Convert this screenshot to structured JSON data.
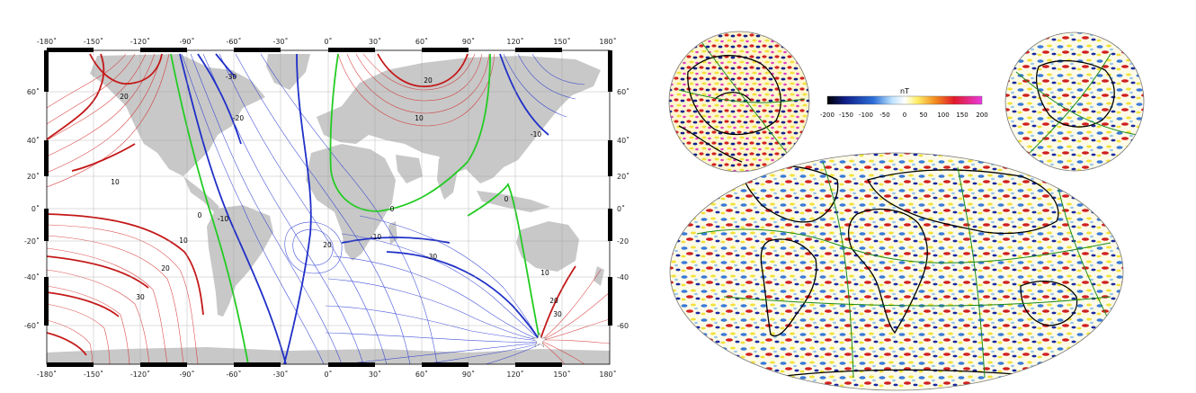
{
  "left_map": {
    "x_ticks": [
      "-180˚",
      "-150˚",
      "-120˚",
      "-90˚",
      "-60˚",
      "-30˚",
      "0˚",
      "30˚",
      "60˚",
      "90˚",
      "120˚",
      "150˚",
      "180˚"
    ],
    "y_ticks": [
      "60˚",
      "40˚",
      "20˚",
      "0˚",
      "-20˚",
      "-40˚",
      "-60˚"
    ],
    "contour_labels": {
      "l_m30_top": "-30",
      "l_20_a": "20",
      "l_m20": "-20",
      "l_20_b": "20",
      "l_10_a": "10",
      "l_m10_asia": "-10",
      "l_10_pac": "10",
      "l_0_atl": "0",
      "l_0_ind": "0",
      "l_0_sa": "0",
      "l_m10_sa": "-10",
      "l_10_sp": "10",
      "l_20_sp": "20",
      "l_30_sp": "30",
      "l_20_atl": "20",
      "l_m10_atl": "-10",
      "l_m30_ind": "-30",
      "l_10_au": "10",
      "l_20_au": "20",
      "l_30_au": "30"
    },
    "colors": {
      "positive": "#d42020",
      "negative": "#1a2bd0",
      "zero": "#22cc22",
      "land": "#c8c8c8"
    }
  },
  "right_map": {
    "colorbar": {
      "unit": "nT",
      "ticks": [
        "-200",
        "-150",
        "-100",
        "-50",
        "0",
        "50",
        "100",
        "150",
        "200"
      ]
    }
  }
}
